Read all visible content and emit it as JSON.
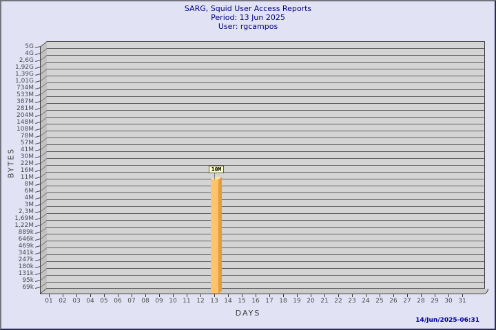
{
  "header": {
    "title": "SARG, Squid User Access Reports",
    "period": "Period: 13 Jun 2025",
    "user": "User: rgcampos"
  },
  "chart_data": {
    "type": "bar",
    "style": "3d-single-bar",
    "title": "SARG, Squid User Access Reports",
    "subtitle": [
      "Period: 13 Jun 2025",
      "User: rgcampos"
    ],
    "xlabel": "DAYS",
    "ylabel": "BYTES",
    "grid": true,
    "x_categories": [
      "01",
      "02",
      "03",
      "04",
      "05",
      "06",
      "07",
      "08",
      "09",
      "10",
      "11",
      "12",
      "13",
      "14",
      "15",
      "16",
      "17",
      "18",
      "19",
      "20",
      "21",
      "22",
      "23",
      "24",
      "25",
      "26",
      "27",
      "28",
      "29",
      "30",
      "31"
    ],
    "y_ticks": [
      "5G",
      "4G",
      "2,6G",
      "1,92G",
      "1,39G",
      "1,01G",
      "734M",
      "533M",
      "387M",
      "281M",
      "204M",
      "148M",
      "108M",
      "78M",
      "57M",
      "41M",
      "30M",
      "22M",
      "16M",
      "11M",
      "8M",
      "6M",
      "4M",
      "3M",
      "2,3M",
      "1,69M",
      "1,22M",
      "889k",
      "646k",
      "469k",
      "341k",
      "247k",
      "180k",
      "131k",
      "95k",
      "69k"
    ],
    "bars": [
      {
        "day": "13",
        "value_label": "10M"
      }
    ],
    "bar_color": "#ffc469",
    "bar_side_color": "#e09e3e",
    "value_box_bg": "#ffffc8"
  },
  "footer": {
    "generated": "14/Jun/2025-06:31"
  },
  "colors": {
    "background": "#e2e2f5",
    "title_text": "#000080",
    "timestamp_text": "#0000a0",
    "plot_wall": "#d4d4d4",
    "plot_side_wall": "#c2c2c2",
    "gridline": "#5e5e5e",
    "tick_text": "#4a4a4a"
  }
}
